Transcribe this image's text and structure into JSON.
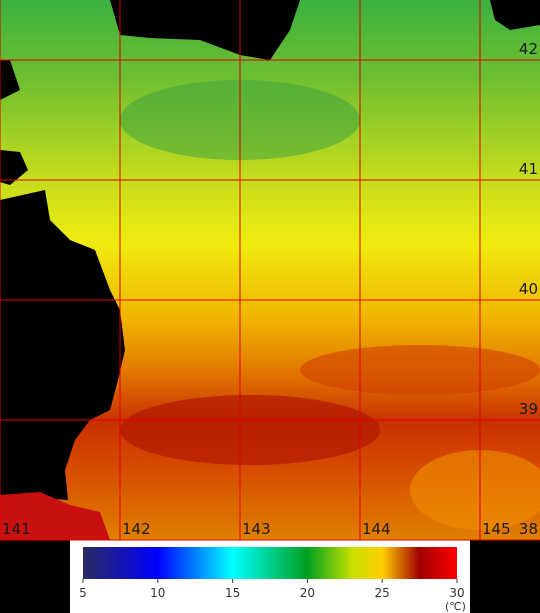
{
  "map": {
    "lat_labels": [
      42,
      41,
      40,
      39,
      38
    ],
    "lon_labels": [
      141,
      142,
      143,
      144,
      145
    ]
  },
  "colorbar": {
    "ticks": [
      5,
      10,
      15,
      20,
      25,
      30
    ],
    "unit": "(℃)"
  }
}
